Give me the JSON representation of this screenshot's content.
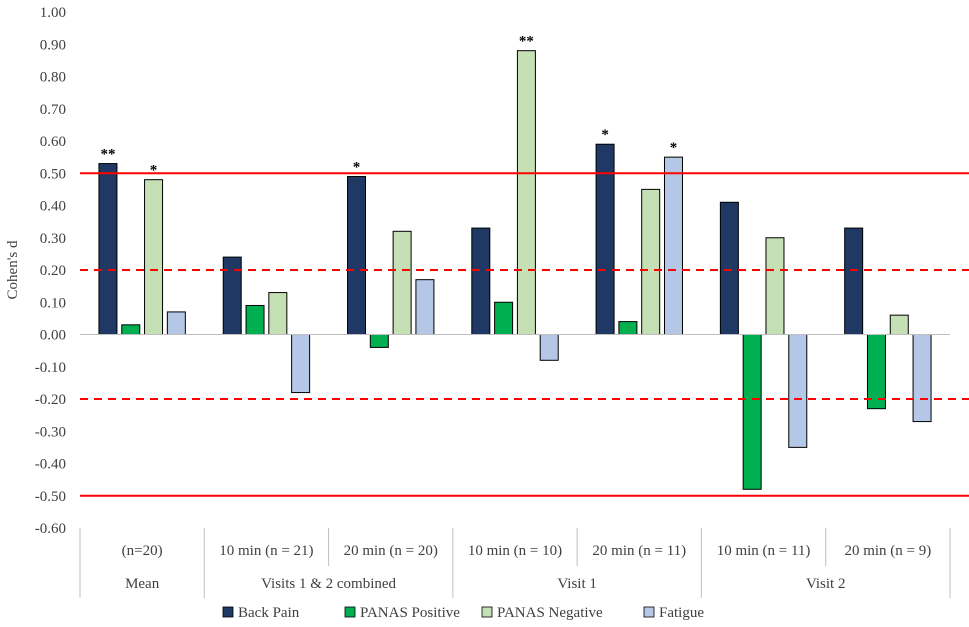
{
  "chart_data": {
    "type": "bar",
    "ylabel": "Cohen's d",
    "ylim": [
      -0.6,
      1.0
    ],
    "ytick_step": 0.1,
    "groups": [
      {
        "label": "Mean",
        "subcategories": [
          "(n=20)"
        ]
      },
      {
        "label": "Visits 1 & 2 combined",
        "subcategories": [
          "10 min (n = 21)",
          "20 min (n = 20)"
        ]
      },
      {
        "label": "Visit 1",
        "subcategories": [
          "10 min (n = 10)",
          "20 min (n = 11)"
        ]
      },
      {
        "label": "Visit 2",
        "subcategories": [
          "10 min (n = 11)",
          "20 min (n = 9)"
        ]
      }
    ],
    "categories": [
      "(n=20)",
      "10 min (n = 21)",
      "20 min (n = 20)",
      "10 min (n = 10)",
      "20 min (n = 11)",
      "10 min (n = 11)",
      "20 min (n = 9)"
    ],
    "series": [
      {
        "name": "Back Pain",
        "color": "#203864",
        "values": [
          0.53,
          0.24,
          0.49,
          0.33,
          0.59,
          0.41,
          0.33
        ],
        "annotations": [
          "**",
          "",
          "*",
          "",
          "*",
          "",
          ""
        ]
      },
      {
        "name": "PANAS Positive",
        "color": "#00B050",
        "values": [
          0.03,
          0.09,
          -0.04,
          0.1,
          0.04,
          -0.48,
          -0.23
        ],
        "annotations": [
          "",
          "",
          "",
          "",
          "",
          "",
          ""
        ]
      },
      {
        "name": "PANAS Negative",
        "color": "#C5E0B4",
        "values": [
          0.48,
          0.13,
          0.32,
          0.88,
          0.45,
          0.3,
          0.06
        ],
        "annotations": [
          "*",
          "",
          "",
          "**",
          "",
          "",
          ""
        ]
      },
      {
        "name": "Fatigue",
        "color": "#B4C7E7",
        "values": [
          0.07,
          -0.18,
          0.17,
          -0.08,
          0.55,
          -0.35,
          -0.27
        ],
        "annotations": [
          "",
          "",
          "",
          "",
          "*",
          "",
          ""
        ]
      }
    ],
    "reference_lines": [
      {
        "value": 0.5,
        "style": "solid",
        "color": "#FF0000"
      },
      {
        "value": 0.2,
        "style": "dashed",
        "color": "#FF0000"
      },
      {
        "value": -0.2,
        "style": "dashed",
        "color": "#FF0000"
      },
      {
        "value": -0.5,
        "style": "solid",
        "color": "#FF0000"
      }
    ],
    "legend_position": "bottom",
    "grid": false
  }
}
